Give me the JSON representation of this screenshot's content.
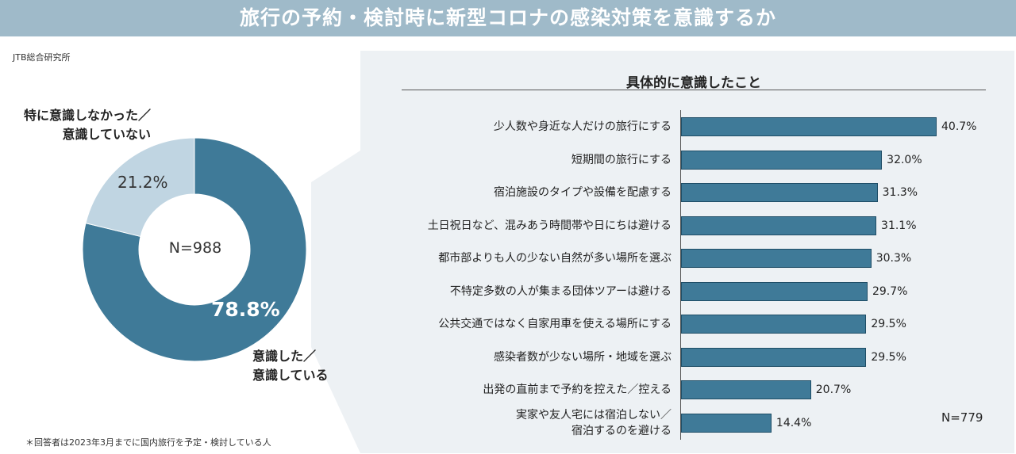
{
  "title": "旅行の予約・検討時に新型コロナの感染対策を意識するか",
  "source": "JTB総合研究所",
  "footnote": "＊回答者は2023年3月までに国内旅行を予定・検討している人",
  "colors": {
    "title_bg": "#9fbac9",
    "dark_slice": "#3f7a98",
    "light_slice": "#c0d5e2",
    "panel_bg": "#edf1f4",
    "bar": "#3f7a98"
  },
  "chart_data": [
    {
      "type": "pie",
      "variant": "donut",
      "center_label": "N=988",
      "slices": [
        {
          "label_lines": [
            "意識した／",
            "意識している"
          ],
          "value": 78.8,
          "display": "78.8%"
        },
        {
          "label_lines": [
            "特に意識しなかった／",
            "意識していない"
          ],
          "value": 21.2,
          "display": "21.2%"
        }
      ]
    },
    {
      "type": "bar",
      "orientation": "horizontal",
      "title": "具体的に意識したこと",
      "n_label": "N=779",
      "xlim": [
        0,
        45
      ],
      "categories": [
        [
          "少人数や身近な人だけの旅行にする"
        ],
        [
          "短期間の旅行にする"
        ],
        [
          "宿泊施設のタイプや設備を配慮する"
        ],
        [
          "土日祝日など、混みあう時間帯や日にちは避ける"
        ],
        [
          "都市部よりも人の少ない自然が多い場所を選ぶ"
        ],
        [
          "不特定多数の人が集まる団体ツアーは避ける"
        ],
        [
          "公共交通ではなく自家用車を使える場所にする"
        ],
        [
          "感染者数が少ない場所・地域を選ぶ"
        ],
        [
          "出発の直前まで予約を控えた／控える"
        ],
        [
          "実家や友人宅には宿泊しない／",
          "宿泊するのを避ける"
        ]
      ],
      "values": [
        40.7,
        32.0,
        31.3,
        31.1,
        30.3,
        29.7,
        29.5,
        29.5,
        20.7,
        14.4
      ],
      "value_labels": [
        "40.7%",
        "32.0%",
        "31.3%",
        "31.1%",
        "30.3%",
        "29.7%",
        "29.5%",
        "29.5%",
        "20.7%",
        "14.4%"
      ]
    }
  ]
}
